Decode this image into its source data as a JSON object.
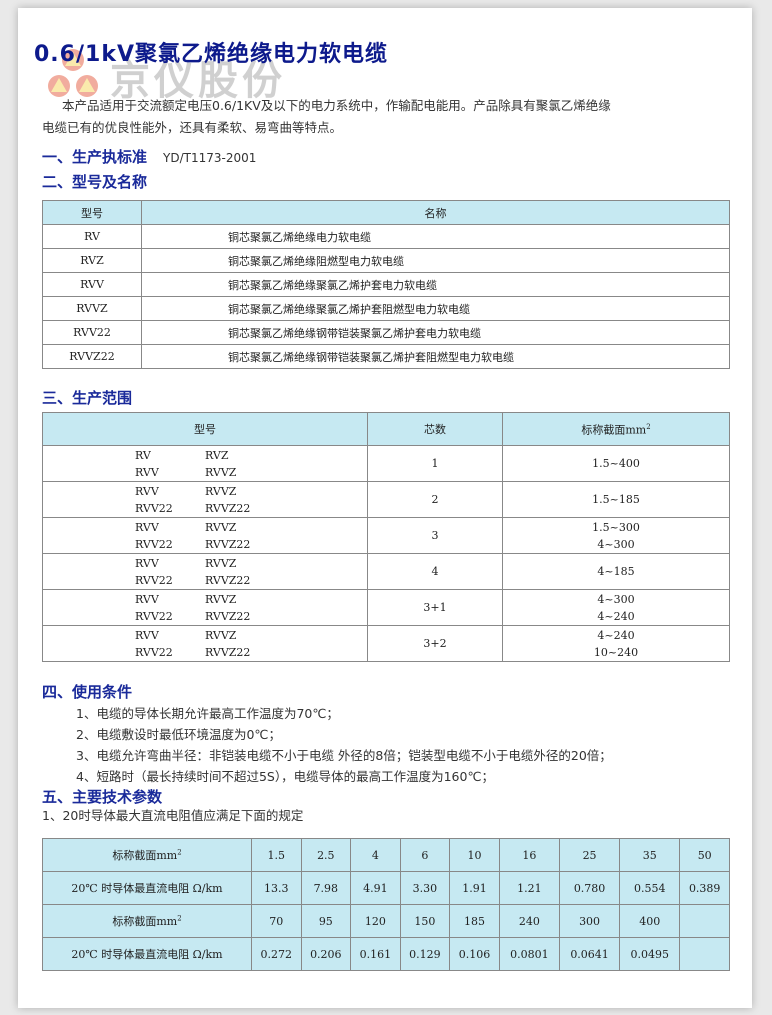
{
  "title": "0.6/1kV聚氯乙烯绝缘电力软电缆",
  "watermark": "京仪股份",
  "intro": [
    "本产品适用于交流额定电压0.6/1KV及以下的电力系统中，作输配电能用。产品除具有聚氯乙烯绝缘",
    "电缆已有的优良性能外，还具有柔软、易弯曲等特点。"
  ],
  "sec1": {
    "heading": "一、生产执标准",
    "standard": "YD/T1173-2001"
  },
  "sec2": {
    "heading": "二、型号及名称",
    "headers": [
      "型号",
      "名称"
    ],
    "rows": [
      [
        "RV",
        "铜芯聚氯乙烯绝缘电力软电缆"
      ],
      [
        "RVZ",
        "铜芯聚氯乙烯绝缘阻燃型电力软电缆"
      ],
      [
        "RVV",
        "铜芯聚氯乙烯绝缘聚氯乙烯护套电力软电缆"
      ],
      [
        "RVVZ",
        "铜芯聚氯乙烯绝缘聚氯乙烯护套阻燃型电力软电缆"
      ],
      [
        "RVV22",
        "铜芯聚氯乙烯绝缘钢带铠装聚氯乙烯护套电力软电缆"
      ],
      [
        "RVVZ22",
        "铜芯聚氯乙烯绝缘钢带铠装聚氯乙烯护套阻燃型电力软电缆"
      ]
    ]
  },
  "sec3": {
    "heading": "三、生产范围",
    "headers": [
      "型号",
      "芯数",
      "标称截面mm",
      "2"
    ],
    "rows": [
      {
        "models": [
          [
            "RV",
            "RVZ"
          ],
          [
            "RVV",
            "RVVZ"
          ]
        ],
        "cores": "1",
        "sections": [
          "1.5~400"
        ]
      },
      {
        "models": [
          [
            "RVV",
            "RVVZ"
          ],
          [
            "RVV22",
            "RVVZ22"
          ]
        ],
        "cores": "2",
        "sections": [
          "1.5~185"
        ]
      },
      {
        "models": [
          [
            "RVV",
            "RVVZ"
          ],
          [
            "RVV22",
            "RVVZ22"
          ]
        ],
        "cores": "3",
        "sections": [
          "1.5~300",
          "4~300"
        ]
      },
      {
        "models": [
          [
            "RVV",
            "RVVZ"
          ],
          [
            "RVV22",
            "RVVZ22"
          ]
        ],
        "cores": "4",
        "sections": [
          "4~185"
        ]
      },
      {
        "models": [
          [
            "RVV",
            "RVVZ"
          ],
          [
            "RVV22",
            "RVVZ22"
          ]
        ],
        "cores": "3+1",
        "sections": [
          "4~300",
          "4~240"
        ]
      },
      {
        "models": [
          [
            "RVV",
            "RVVZ"
          ],
          [
            "RVV22",
            "RVVZ22"
          ]
        ],
        "cores": "3+2",
        "sections": [
          "4~240",
          "10~240"
        ]
      }
    ]
  },
  "sec4": {
    "heading": "四、使用条件",
    "items": [
      "1、电缆的导体长期允许最高工作温度为70℃；",
      "2、电缆敷设时最低环境温度为0℃；",
      "3、电缆允许弯曲半径：非铠装电缆不小于电缆 外径的8倍；铠装型电缆不小于电缆外径的20倍；",
      "4、短路时（最长持续时间不超过5S），电缆导体的最高工作温度为160℃；"
    ]
  },
  "sec5": {
    "heading": "五、主要技术参数",
    "note": "1、20时导体最大直流电阻值应满足下面的规定",
    "label_section": "标称截面mm",
    "label_sup": "2",
    "label_resist": "20℃ 时导体最直流电阻 Ω/km",
    "sections1": [
      "1.5",
      "2.5",
      "4",
      "6",
      "10",
      "16",
      "25",
      "35",
      "50"
    ],
    "resist1": [
      "13.3",
      "7.98",
      "4.91",
      "3.30",
      "1.91",
      "1.21",
      "0.780",
      "0.554",
      "0.389"
    ],
    "sections2": [
      "70",
      "95",
      "120",
      "150",
      "185",
      "240",
      "300",
      "400",
      ""
    ],
    "resist2": [
      "0.272",
      "0.206",
      "0.161",
      "0.129",
      "0.106",
      "0.0801",
      "0.0641",
      "0.0495",
      ""
    ]
  },
  "colors": {
    "heading": "#1a2a9a",
    "table_header": "#c6e9f2"
  }
}
